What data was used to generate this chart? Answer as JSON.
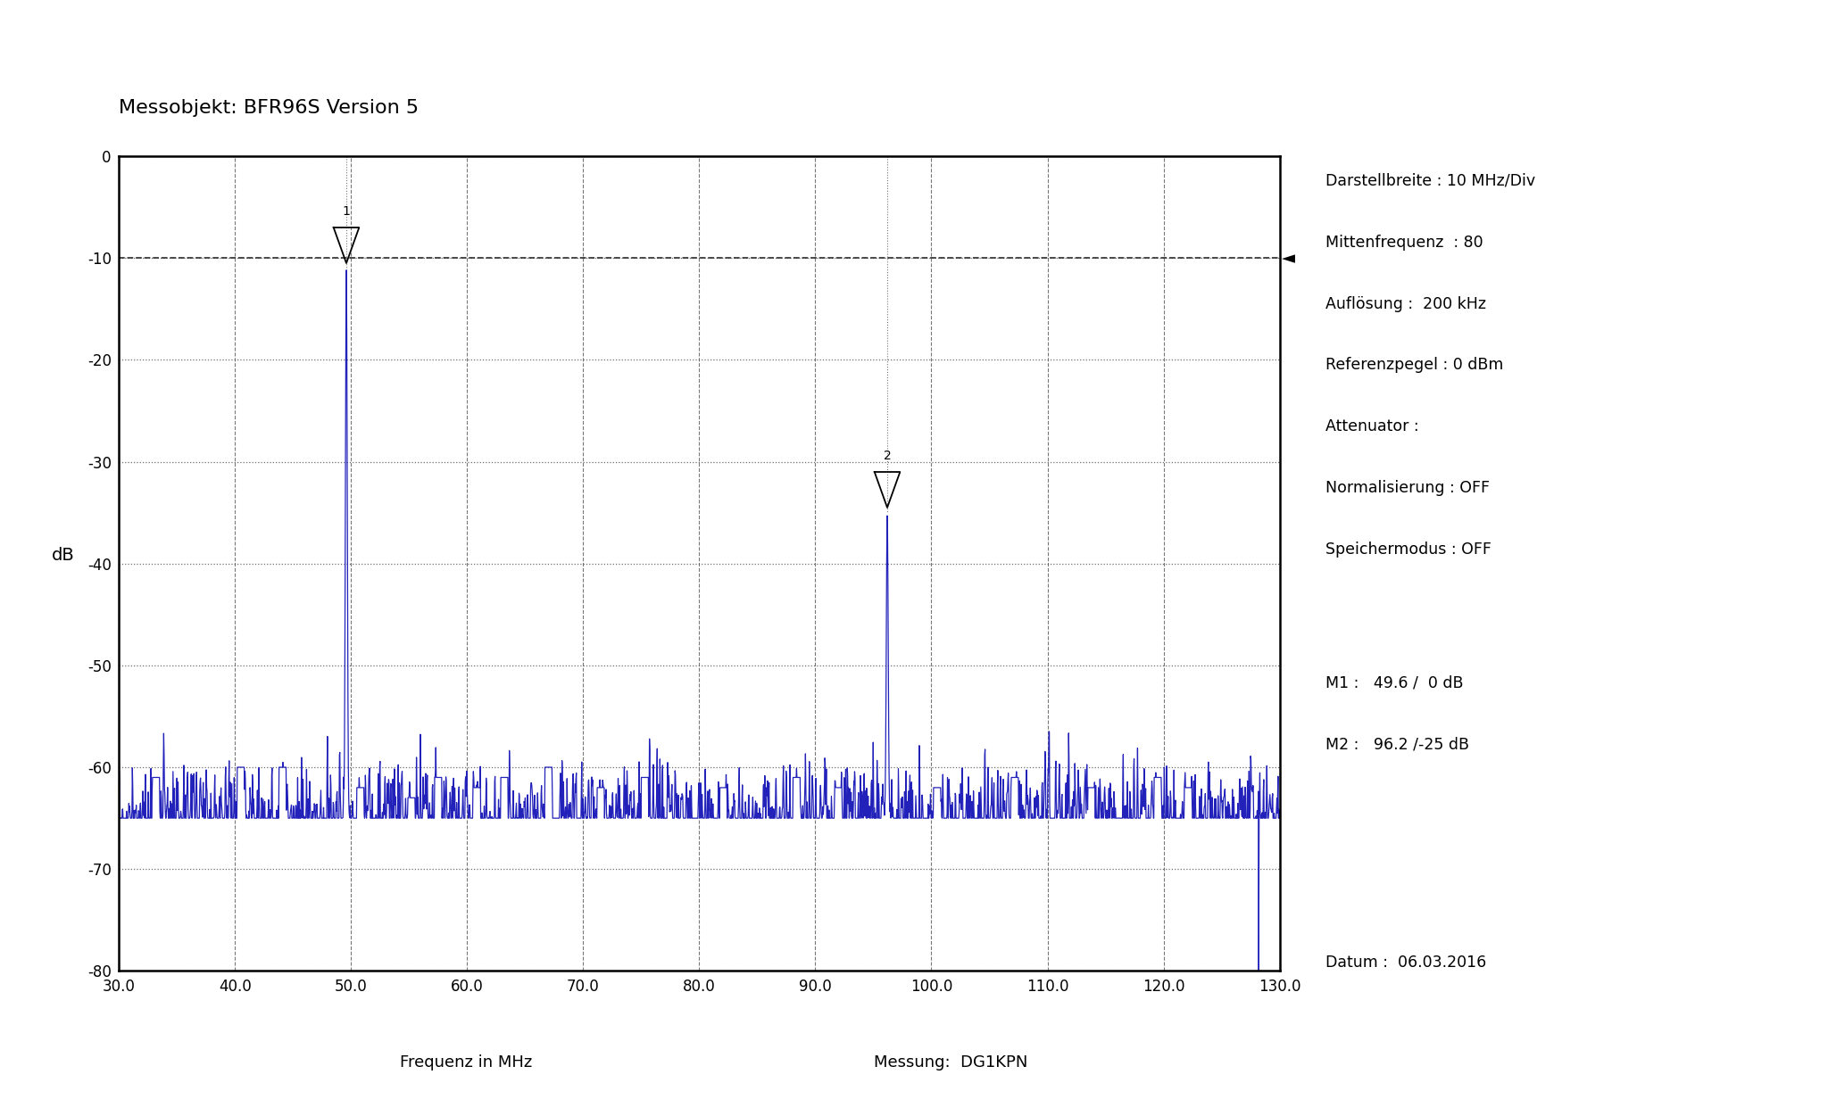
{
  "title": "Messobjekt: BFR96S Version 5",
  "xlabel": "Frequenz in MHz",
  "ylabel": "dB",
  "xlim": [
    30.0,
    130.0
  ],
  "ylim": [
    -80,
    0
  ],
  "xticks": [
    30.0,
    40.0,
    50.0,
    60.0,
    70.0,
    80.0,
    90.0,
    100.0,
    110.0,
    120.0,
    130.0
  ],
  "yticks": [
    0,
    -10,
    -20,
    -30,
    -40,
    -50,
    -60,
    -70,
    -80
  ],
  "line_color": "#2222bb",
  "noise_floor_mean": -65.0,
  "noise_floor_std": 2.5,
  "peak1_freq": 49.6,
  "peak1_amp": -11.0,
  "peak2_freq": 96.2,
  "peak2_amp": -35.0,
  "ref_line_y": -10,
  "right_panel_lines": [
    "Darstellbreite : 10 MHz/Div",
    "Mittenfrequenz  : 80",
    "Auflösung :  200 kHz",
    "Referenzpegel : 0 dBm",
    "Attenuator :",
    "Normalisierung : OFF",
    "Speichermodus : OFF",
    "",
    "M1 :   49.6 /  0 dB",
    "M2 :   96.2 /-25 dB"
  ],
  "datum_text": "Datum :  06.03.2016",
  "xlabel_text": "Frequenz in MHz",
  "messung_text": "Messung:  DG1KPN",
  "background_color": "#ffffff",
  "text_color": "#000000",
  "grid_dash_color": "#555555",
  "grid_dot_color": "#555555"
}
